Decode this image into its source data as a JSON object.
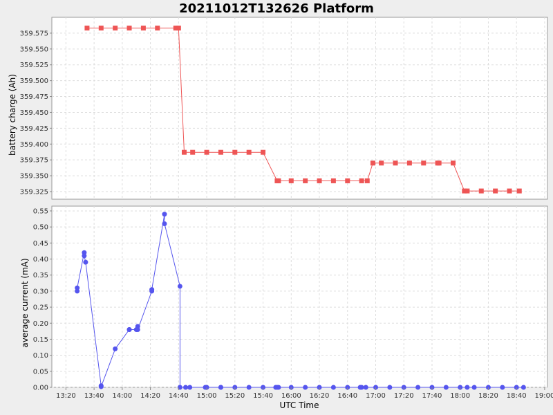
{
  "chart_data": {
    "title": "20211012T132626 Platform",
    "xlabel": "UTC Time",
    "x_ticks": [
      "13:20",
      "13:40",
      "14:00",
      "14:20",
      "14:40",
      "15:00",
      "15:20",
      "15:40",
      "16:00",
      "16:20",
      "16:40",
      "17:00",
      "17:20",
      "17:40",
      "18:00",
      "18:20",
      "18:40",
      "19:00"
    ],
    "grid": true,
    "panels": [
      {
        "type": "line",
        "ylabel": "battery charge (Ah)",
        "ylim": [
          359.313,
          359.6
        ],
        "y_ticks": [
          "359.325",
          "359.350",
          "359.375",
          "359.400",
          "359.425",
          "359.450",
          "359.475",
          "359.500",
          "359.525",
          "359.550",
          "359.575"
        ],
        "color": "#ee5555",
        "marker": "square",
        "series": [
          {
            "x": [
              "13:35",
              "13:45",
              "13:55",
              "14:05",
              "14:15",
              "14:25",
              "14:38",
              "14:40",
              "14:44",
              "14:50",
              "15:00",
              "15:10",
              "15:20",
              "15:30",
              "15:40",
              "15:50",
              "15:51",
              "16:00",
              "16:10",
              "16:20",
              "16:30",
              "16:40",
              "16:50",
              "16:54",
              "16:58",
              "17:04",
              "17:14",
              "17:24",
              "17:34",
              "17:44",
              "17:45",
              "17:55",
              "18:03",
              "18:05",
              "18:15",
              "18:25",
              "18:35",
              "18:42"
            ],
            "y": [
              359.583,
              359.583,
              359.583,
              359.583,
              359.583,
              359.583,
              359.583,
              359.583,
              359.387,
              359.387,
              359.387,
              359.387,
              359.387,
              359.387,
              359.387,
              359.342,
              359.342,
              359.342,
              359.342,
              359.342,
              359.342,
              359.342,
              359.342,
              359.342,
              359.37,
              359.37,
              359.37,
              359.37,
              359.37,
              359.37,
              359.37,
              359.37,
              359.326,
              359.326,
              359.326,
              359.326,
              359.326,
              359.326
            ]
          }
        ]
      },
      {
        "type": "line",
        "ylabel": "average current (mA)",
        "ylim": [
          0,
          0.565
        ],
        "y_ticks": [
          "0.00",
          "0.05",
          "0.10",
          "0.15",
          "0.20",
          "0.25",
          "0.30",
          "0.35",
          "0.40",
          "0.45",
          "0.50",
          "0.55"
        ],
        "color": "#5555ee",
        "marker": "circle",
        "series": [
          {
            "x": [
              "13:28",
              "13:28",
              "13:33",
              "13:33",
              "13:34",
              "13:45",
              "13:45",
              "13:55",
              "14:05",
              "14:05",
              "14:10",
              "14:11",
              "14:11",
              "14:21",
              "14:21",
              "14:30",
              "14:30",
              "14:41",
              "14:41",
              "14:45",
              "14:48",
              "14:59",
              "15:00",
              "15:10",
              "15:10",
              "15:20",
              "15:30",
              "15:40",
              "15:49",
              "15:50",
              "15:51",
              "16:00",
              "16:10",
              "16:20",
              "16:30",
              "16:40",
              "16:49",
              "16:50",
              "16:53",
              "17:00",
              "17:10",
              "17:20",
              "17:30",
              "17:40",
              "17:50",
              "18:00",
              "18:05",
              "18:10",
              "18:20",
              "18:30",
              "18:40",
              "18:45"
            ],
            "y": [
              0.3,
              0.31,
              0.42,
              0.41,
              0.39,
              0.005,
              0.002,
              0.12,
              0.18,
              0.18,
              0.18,
              0.19,
              0.18,
              0.3,
              0.305,
              0.54,
              0.51,
              0.315,
              0.0,
              0.0,
              0.0,
              0.0,
              0.0,
              0.0,
              0.0,
              0.0,
              0.0,
              0.0,
              0.0,
              0.0,
              0.0,
              0.0,
              0.0,
              0.0,
              0.0,
              0.0,
              0.0,
              0.0,
              0.0,
              0.0,
              0.0,
              0.0,
              0.0,
              0.0,
              0.0,
              0.0,
              0.0,
              0.0,
              0.0,
              0.0,
              0.0,
              0.0
            ]
          }
        ]
      }
    ]
  }
}
